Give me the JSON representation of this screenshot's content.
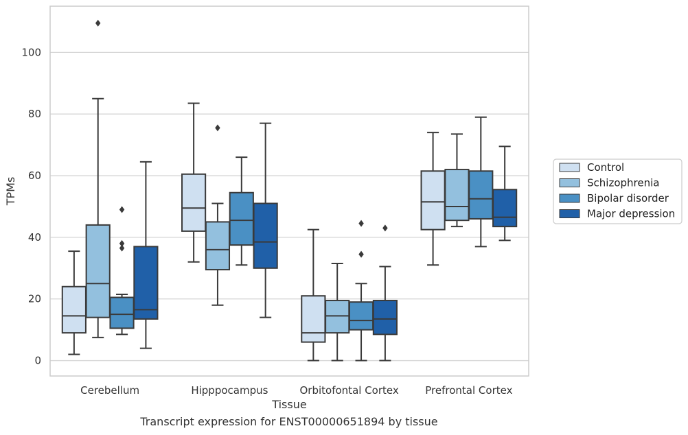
{
  "caption": "Transcript expression for ENST00000651894 by tissue",
  "chart_data": {
    "type": "boxplot",
    "xlabel": "Tissue",
    "ylabel": "TPMs",
    "ylim": [
      -5,
      115
    ],
    "yticks": [
      0,
      20,
      40,
      60,
      80,
      100
    ],
    "grid": "horizontal",
    "legend_position": "right",
    "categories": [
      "Cerebellum",
      "Hipppocampus",
      "Orbitofontal Cortex",
      "Prefrontal Cortex"
    ],
    "series": [
      {
        "name": "Control",
        "color": "#cfe0f1",
        "boxes": [
          {
            "whislo": 2,
            "q1": 9,
            "med": 14.5,
            "q3": 24,
            "whishi": 35.5,
            "fliers": []
          },
          {
            "whislo": 32,
            "q1": 42,
            "med": 49.5,
            "q3": 60.5,
            "whishi": 83.5,
            "fliers": []
          },
          {
            "whislo": 0,
            "q1": 6,
            "med": 9,
            "q3": 21,
            "whishi": 42.5,
            "fliers": []
          },
          {
            "whislo": 31,
            "q1": 42.5,
            "med": 51.5,
            "q3": 61.5,
            "whishi": 74,
            "fliers": []
          }
        ]
      },
      {
        "name": "Schizophrenia",
        "color": "#93c0de",
        "boxes": [
          {
            "whislo": 7.5,
            "q1": 14,
            "med": 25,
            "q3": 44,
            "whishi": 85,
            "fliers": [
              109.5
            ]
          },
          {
            "whislo": 18,
            "q1": 29.5,
            "med": 36,
            "q3": 45,
            "whishi": 51,
            "fliers": [
              75.5
            ]
          },
          {
            "whislo": 0,
            "q1": 9,
            "med": 14.5,
            "q3": 19.5,
            "whishi": 31.5,
            "fliers": []
          },
          {
            "whislo": 43.5,
            "q1": 45.5,
            "med": 50,
            "q3": 62,
            "whishi": 73.5,
            "fliers": []
          }
        ]
      },
      {
        "name": "Bipolar disorder",
        "color": "#4a90c4",
        "boxes": [
          {
            "whislo": 8.5,
            "q1": 10.5,
            "med": 15,
            "q3": 20.5,
            "whishi": 21.5,
            "fliers": [
              49,
              38,
              36.5
            ]
          },
          {
            "whislo": 31,
            "q1": 37.5,
            "med": 45.5,
            "q3": 54.5,
            "whishi": 66,
            "fliers": []
          },
          {
            "whislo": 0,
            "q1": 10,
            "med": 13,
            "q3": 19,
            "whishi": 25,
            "fliers": [
              44.5,
              34.5
            ]
          },
          {
            "whislo": 37,
            "q1": 46,
            "med": 52.5,
            "q3": 61.5,
            "whishi": 79,
            "fliers": []
          }
        ]
      },
      {
        "name": "Major depression",
        "color": "#2060a8",
        "boxes": [
          {
            "whislo": 4,
            "q1": 13.5,
            "med": 16.5,
            "q3": 37,
            "whishi": 64.5,
            "fliers": []
          },
          {
            "whislo": 14,
            "q1": 30,
            "med": 38.5,
            "q3": 51,
            "whishi": 77,
            "fliers": []
          },
          {
            "whislo": 0,
            "q1": 8.5,
            "med": 13.5,
            "q3": 19.5,
            "whishi": 30.5,
            "fliers": [
              43
            ]
          },
          {
            "whislo": 39,
            "q1": 43.5,
            "med": 46.5,
            "q3": 55.5,
            "whishi": 69.5,
            "fliers": []
          }
        ]
      }
    ]
  }
}
